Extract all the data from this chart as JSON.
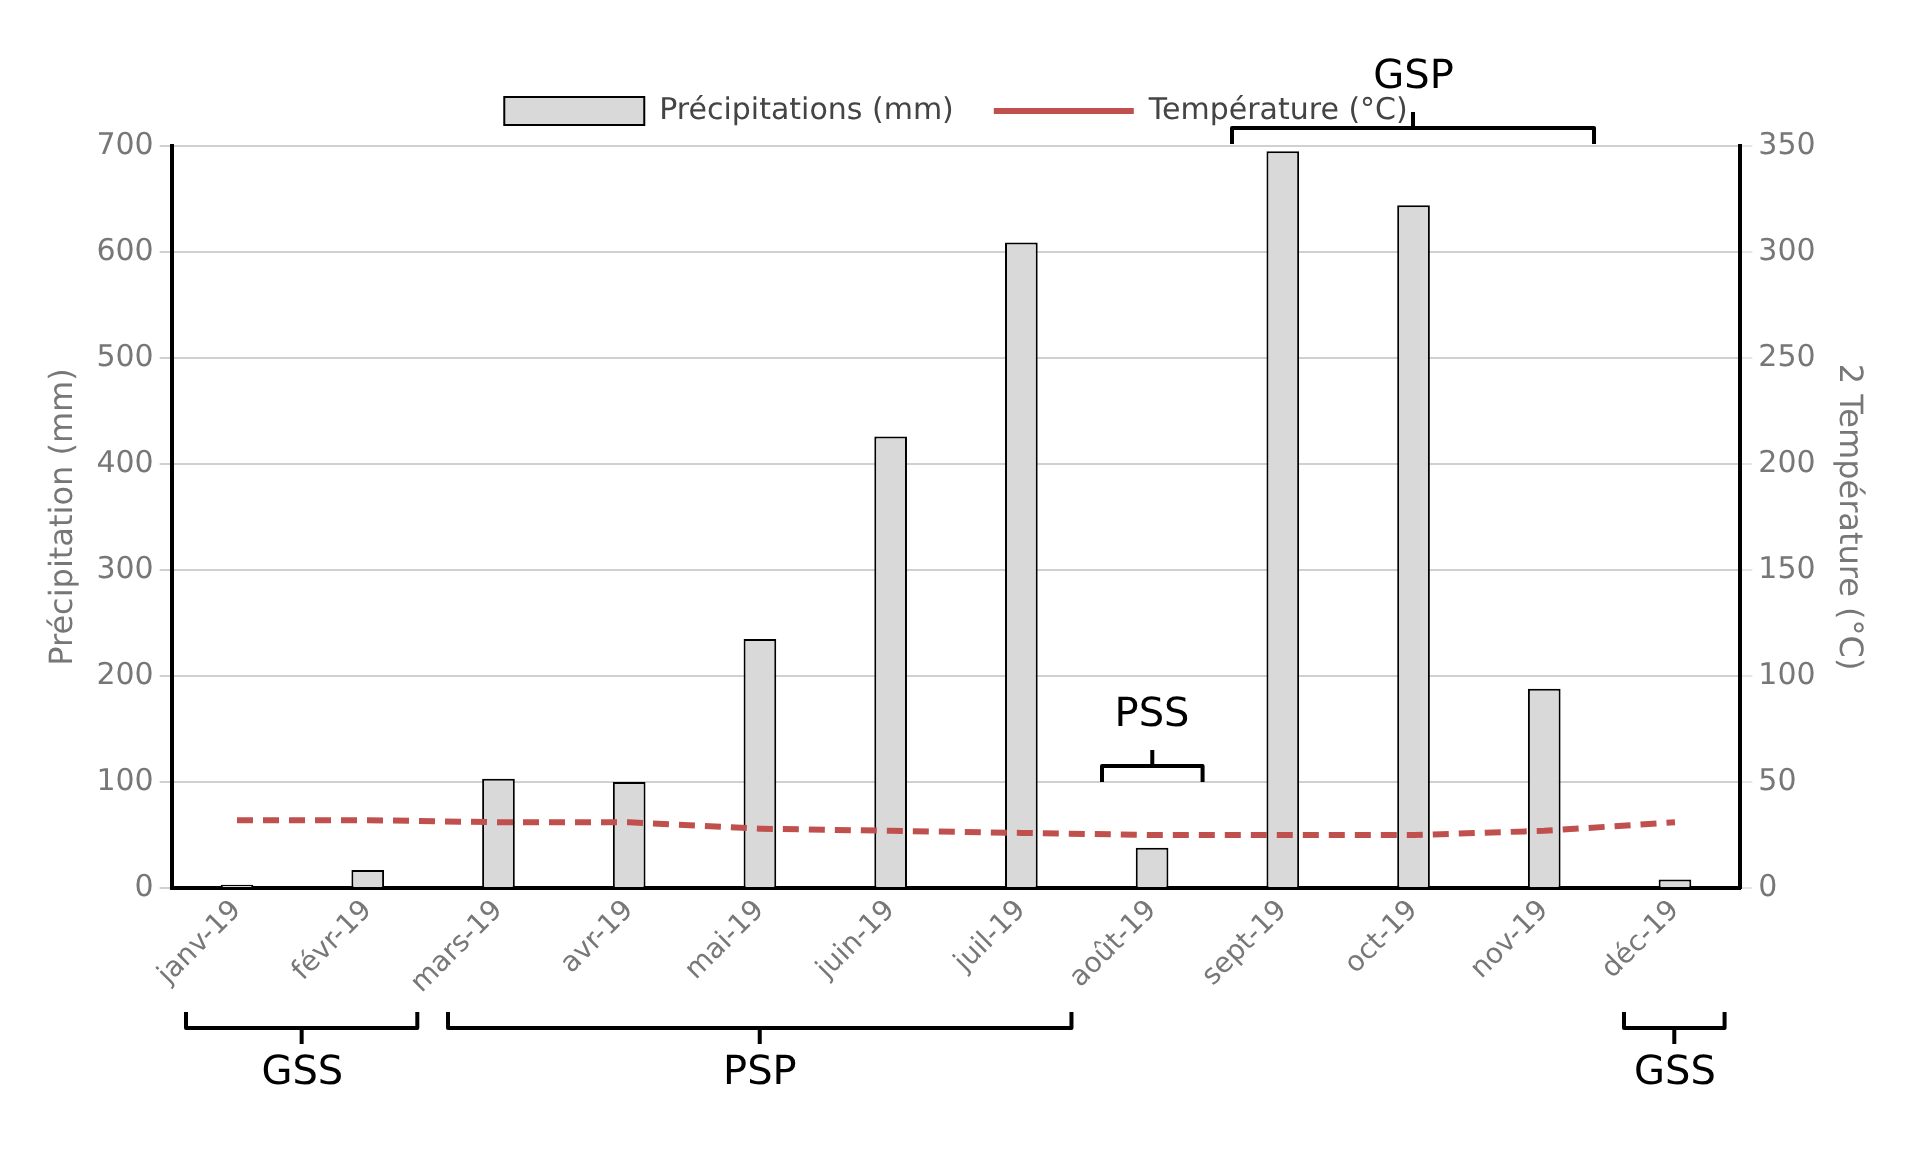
{
  "chart_data": {
    "type": "bar",
    "categories": [
      "janv-19",
      "févr-19",
      "mars-19",
      "avr-19",
      "mai-19",
      "juin-19",
      "juil-19",
      "août-19",
      "sept-19",
      "oct-19",
      "nov-19",
      "déc-19"
    ],
    "series": [
      {
        "name": "Précipitations (mm)",
        "color": "#d9d9d9",
        "values": [
          3,
          17,
          103,
          100,
          235,
          426,
          609,
          38,
          695,
          644,
          188,
          8
        ]
      },
      {
        "name": "Température (°C)",
        "type": "line",
        "axis": "y2",
        "color": "#c0504d",
        "line_style": "dashed",
        "marker": "none",
        "values": [
          32,
          32,
          31,
          31,
          28,
          27,
          26,
          25,
          25,
          25,
          27,
          31
        ]
      }
    ],
    "ylabel": "Précipitation (mm)",
    "y2label": "2 Température (°C)",
    "ylim": [
      0,
      700
    ],
    "yticks": [
      0,
      100,
      200,
      300,
      400,
      500,
      600,
      700
    ],
    "y2lim": [
      0,
      350
    ],
    "y2ticks": [
      0,
      50,
      100,
      150,
      200,
      250,
      300,
      350
    ],
    "grid": "y",
    "legend": "top",
    "annotations": [
      "GSS",
      "PSP",
      "PSS",
      "GSP",
      "GSS"
    ]
  }
}
